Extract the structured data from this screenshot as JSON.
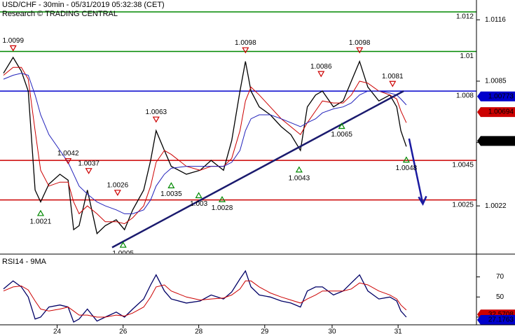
{
  "chart_data": [
    {
      "type": "line",
      "title": "USD/CHF - 30min - 05/31/2019 05:32:38 (CET)",
      "subtitle": "Research © TRADING CENTRAL",
      "xlim": [
        0,
        344
      ],
      "ylim": [
        0.9998,
        1.0126
      ],
      "yticks": [
        1.0116,
        1.0085,
        1.0054,
        1.0022
      ],
      "x": [
        0,
        7,
        13,
        18,
        23,
        27,
        33,
        41,
        47,
        51,
        55,
        61,
        68,
        74,
        82,
        88,
        94,
        102,
        107,
        111,
        117,
        122,
        133,
        143,
        151,
        160,
        166,
        172,
        176,
        180,
        186,
        194,
        202,
        209,
        216,
        221,
        227,
        232,
        240,
        247,
        253,
        259,
        265,
        273,
        281,
        286,
        289,
        293
      ],
      "series": [
        {
          "color": "#000000",
          "values": [
            1.0089,
            1.0097,
            1.009,
            1.008,
            1.003,
            1.0024,
            1.0033,
            1.0038,
            1.0035,
            1.001,
            1.0012,
            1.003,
            1.0008,
            1.0012,
            1.0015,
            1.001,
            1.002,
            1.003,
            1.0045,
            1.006,
            1.005,
            1.0042,
            1.0038,
            1.004,
            1.0045,
            1.004,
            1.0055,
            1.008,
            1.0095,
            1.008,
            1.0072,
            1.0068,
            1.0062,
            1.0058,
            1.005,
            1.0072,
            1.0078,
            1.008,
            1.0072,
            1.0075,
            1.0085,
            1.0095,
            1.0082,
            1.0075,
            1.0078,
            1.0072,
            1.006,
            1.0052
          ]
        },
        {
          "color": "#cc0000",
          "values": [
            1.0088,
            1.0092,
            1.0092,
            1.0086,
            1.006,
            1.004,
            1.0032,
            1.0034,
            1.0034,
            1.0024,
            1.0018,
            1.0022,
            1.0018,
            1.0014,
            1.0014,
            1.0013,
            1.0016,
            1.0022,
            1.0032,
            1.0044,
            1.005,
            1.0048,
            1.0042,
            1.004,
            1.0042,
            1.0042,
            1.0046,
            1.006,
            1.0075,
            1.0082,
            1.0078,
            1.0072,
            1.0066,
            1.0062,
            1.0058,
            1.0064,
            1.007,
            1.0075,
            1.0074,
            1.0074,
            1.0078,
            1.0085,
            1.0084,
            1.008,
            1.0078,
            1.0076,
            1.007,
            1.0064
          ]
        },
        {
          "color": "#2222bb",
          "values": [
            1.0086,
            1.0088,
            1.0089,
            1.0088,
            1.0078,
            1.0068,
            1.0058,
            1.005,
            1.0044,
            1.0038,
            1.0032,
            1.0028,
            1.0024,
            1.0022,
            1.002,
            1.0018,
            1.0018,
            1.002,
            1.0025,
            1.0032,
            1.0038,
            1.0041,
            1.0042,
            1.0042,
            1.0042,
            1.0042,
            1.0044,
            1.005,
            1.006,
            1.0066,
            1.0068,
            1.0068,
            1.0066,
            1.0064,
            1.0062,
            1.0064,
            1.0066,
            1.0069,
            1.0071,
            1.0072,
            1.0074,
            1.0078,
            1.008,
            1.008,
            1.0079,
            1.0078,
            1.0076,
            1.0073
          ]
        }
      ],
      "levels": [
        {
          "value": 1.012,
          "color": "#008800"
        },
        {
          "value": 1.01,
          "color": "#008800"
        },
        {
          "value": 1.008,
          "color": "#0000cc"
        },
        {
          "value": 1.0045,
          "color": "#cc0000"
        },
        {
          "value": 1.0025,
          "color": "#cc0000"
        }
      ],
      "lines": [
        {
          "x": [
            79,
            291
          ],
          "values": [
            1.0001,
            1.008
          ],
          "color": "#1a1a6e"
        },
        {
          "x": [
            295,
            305
          ],
          "values": [
            1.0056,
            1.0023
          ],
          "color": "#1a1aa0"
        }
      ],
      "annotations": [
        {
          "x": 7,
          "value": 1.0099,
          "kind": "high"
        },
        {
          "x": 47,
          "value": 1.0042,
          "kind": "high"
        },
        {
          "x": 62,
          "value": 1.0037,
          "kind": "high"
        },
        {
          "x": 83,
          "value": 1.0026,
          "kind": "high"
        },
        {
          "x": 111,
          "value": 1.0063,
          "kind": "high"
        },
        {
          "x": 176,
          "value": 1.0098,
          "kind": "high"
        },
        {
          "x": 231,
          "value": 1.0086,
          "kind": "high"
        },
        {
          "x": 259,
          "value": 1.0098,
          "kind": "high"
        },
        {
          "x": 283,
          "value": 1.0081,
          "kind": "high"
        },
        {
          "x": 27,
          "value": 1.0021,
          "kind": "low"
        },
        {
          "x": 87,
          "value": 1.0005,
          "kind": "low"
        },
        {
          "x": 122,
          "value": 1.0035,
          "kind": "low"
        },
        {
          "x": 142,
          "value": 1.003,
          "kind": "low"
        },
        {
          "x": 159,
          "value": 1.0028,
          "kind": "low"
        },
        {
          "x": 215,
          "value": 1.0043,
          "kind": "low"
        },
        {
          "x": 246,
          "value": 1.0065,
          "kind": "low"
        },
        {
          "x": 293,
          "value": 1.0048,
          "kind": "low"
        }
      ],
      "price_tags": [
        {
          "value": 1.00773,
          "color": "#0000cc"
        },
        {
          "value": 1.00694,
          "color": "#cc0000"
        },
        {
          "value": 1.00548,
          "color": "#000000"
        }
      ]
    },
    {
      "type": "line",
      "title": "RSI14 - 9MA",
      "xlim": [
        0,
        344
      ],
      "ylim": [
        23,
        92
      ],
      "yticks": [
        70,
        50,
        30
      ],
      "xticks": [
        {
          "value": 39,
          "label": "24"
        },
        {
          "value": 87,
          "label": "26"
        },
        {
          "value": 142,
          "label": "28"
        },
        {
          "value": 190,
          "label": "29"
        },
        {
          "value": 239,
          "label": "30"
        },
        {
          "value": 287,
          "label": "31"
        }
      ],
      "x": [
        0,
        7,
        13,
        18,
        23,
        27,
        33,
        41,
        47,
        51,
        55,
        61,
        68,
        74,
        82,
        88,
        94,
        102,
        107,
        111,
        117,
        122,
        133,
        143,
        151,
        160,
        166,
        172,
        176,
        180,
        186,
        194,
        202,
        209,
        216,
        221,
        227,
        232,
        240,
        247,
        253,
        259,
        265,
        273,
        281,
        286,
        289,
        293
      ],
      "series": [
        {
          "color": "#000066",
          "values": [
            58,
            66,
            60,
            50,
            28,
            30,
            40,
            42,
            40,
            25,
            28,
            38,
            26,
            30,
            35,
            30,
            38,
            48,
            62,
            72,
            56,
            48,
            44,
            46,
            52,
            48,
            55,
            68,
            76,
            60,
            52,
            50,
            46,
            44,
            40,
            56,
            60,
            60,
            52,
            56,
            64,
            72,
            56,
            48,
            50,
            46,
            36,
            30
          ]
        },
        {
          "color": "#cc0000",
          "values": [
            56,
            60,
            61,
            57,
            46,
            38,
            36,
            38,
            40,
            36,
            32,
            32,
            30,
            30,
            32,
            31,
            34,
            40,
            50,
            60,
            62,
            56,
            50,
            47,
            48,
            49,
            52,
            58,
            66,
            66,
            60,
            54,
            50,
            47,
            44,
            48,
            52,
            56,
            56,
            56,
            58,
            64,
            62,
            56,
            52,
            48,
            42,
            37
          ]
        }
      ],
      "price_tags": [
        {
          "value": 32.5708,
          "color": "#cc0000"
        },
        {
          "value": 27.1763,
          "color": "#0000cc"
        }
      ]
    }
  ]
}
